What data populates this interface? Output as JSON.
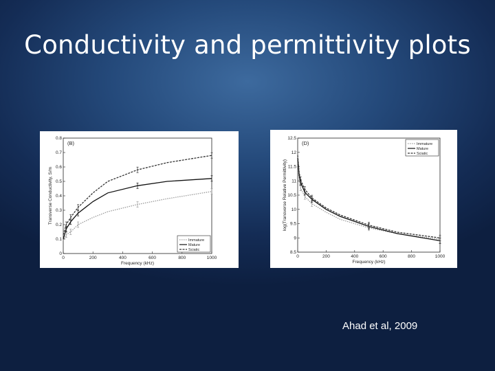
{
  "slide": {
    "title": "Conductivity and permittivity plots",
    "citation": "Ahad et al, 2009",
    "background": "#1c3a66"
  },
  "chart_data": [
    {
      "type": "line",
      "panel_label": "(B)",
      "xlabel": "Frequency (kHz)",
      "ylabel": "Transverse Conductivity, S/m",
      "xlim": [
        0,
        1000
      ],
      "ylim": [
        0,
        0.8
      ],
      "xticks": [
        "0",
        "200",
        "400",
        "600",
        "800",
        "1000"
      ],
      "yticks": [
        "0",
        "0.1",
        "0.2",
        "0.3",
        "0.4",
        "0.5",
        "0.6",
        "0.7",
        "0.8"
      ],
      "legend": "bottom-right",
      "grid": false,
      "series": [
        {
          "name": "Immature",
          "color": "#9a9a9a",
          "style": "dotted",
          "x": [
            0,
            20,
            50,
            100,
            200,
            300,
            500,
            700,
            1000
          ],
          "y": [
            0.09,
            0.13,
            0.15,
            0.2,
            0.25,
            0.29,
            0.34,
            0.38,
            0.43
          ]
        },
        {
          "name": "Mature",
          "color": "#111111",
          "style": "solid",
          "x": [
            0,
            20,
            50,
            100,
            200,
            300,
            500,
            700,
            1000
          ],
          "y": [
            0.1,
            0.17,
            0.22,
            0.28,
            0.36,
            0.42,
            0.47,
            0.5,
            0.52
          ]
        },
        {
          "name": "Sciatic",
          "color": "#333333",
          "style": "dashed",
          "x": [
            0,
            20,
            50,
            100,
            200,
            300,
            500,
            700,
            1000
          ],
          "y": [
            0.13,
            0.2,
            0.25,
            0.32,
            0.42,
            0.5,
            0.58,
            0.63,
            0.68
          ]
        }
      ],
      "error_bars_x": [
        20,
        50,
        100,
        500,
        1000
      ]
    },
    {
      "type": "line",
      "panel_label": "(D)",
      "xlabel": "Frequency (kHz)",
      "ylabel": "log(Transverse Relative Permittivity)",
      "xlim": [
        0,
        1000
      ],
      "ylim": [
        8.5,
        12.5
      ],
      "xticks": [
        "0",
        "200",
        "400",
        "600",
        "800",
        "1000"
      ],
      "yticks": [
        "8.5",
        "9",
        "9.5",
        "10",
        "10.5",
        "11",
        "11.5",
        "12",
        "12.5"
      ],
      "legend": "top-right",
      "grid": false,
      "series": [
        {
          "name": "Immature",
          "color": "#9a9a9a",
          "style": "dotted",
          "x": [
            0,
            10,
            20,
            50,
            100,
            200,
            300,
            500,
            700,
            1000
          ],
          "y": [
            11.7,
            11.0,
            10.75,
            10.45,
            10.2,
            9.9,
            9.65,
            9.35,
            9.15,
            8.95
          ]
        },
        {
          "name": "Mature",
          "color": "#111111",
          "style": "solid",
          "x": [
            0,
            10,
            20,
            50,
            100,
            200,
            300,
            500,
            700,
            1000
          ],
          "y": [
            11.8,
            11.2,
            10.95,
            10.6,
            10.35,
            10.0,
            9.75,
            9.4,
            9.15,
            8.9
          ]
        },
        {
          "name": "Sciatic",
          "color": "#333333",
          "style": "dashed",
          "x": [
            0,
            10,
            20,
            50,
            100,
            200,
            300,
            500,
            700,
            1000
          ],
          "y": [
            11.9,
            11.3,
            11.05,
            10.7,
            10.4,
            10.05,
            9.8,
            9.45,
            9.2,
            9.0
          ]
        }
      ],
      "error_bars_x": [
        20,
        50,
        100,
        500,
        1000
      ]
    }
  ]
}
